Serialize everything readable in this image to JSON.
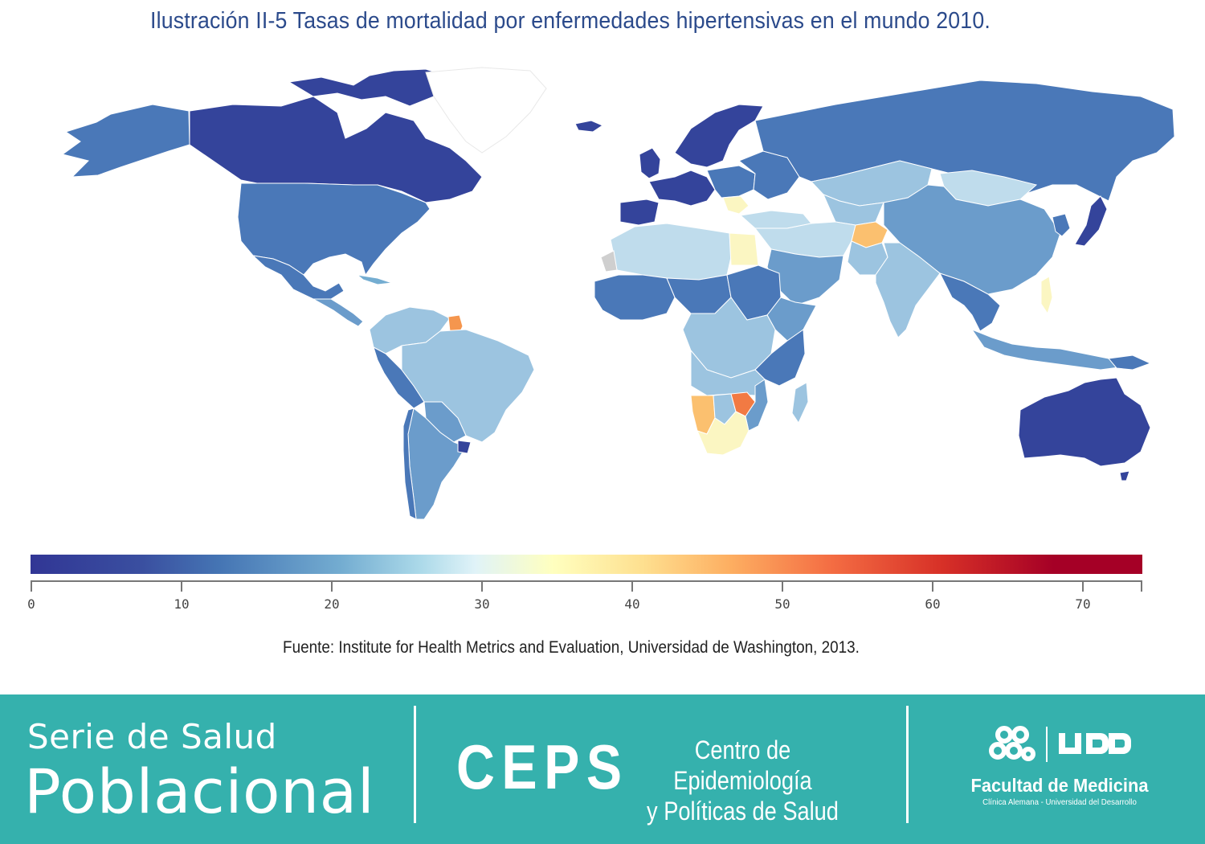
{
  "title": "Ilustración II-5 Tasas de mortalidad por enfermedades hipertensivas en el mundo 2010.",
  "source": "Fuente: Institute for Health Metrics and Evaluation, Universidad de Washington, 2013.",
  "legend": {
    "min": 0,
    "max": 74,
    "ticks": [
      "0",
      "10",
      "20",
      "30",
      "40",
      "50",
      "60",
      "70"
    ],
    "tick_values": [
      0,
      10,
      20,
      30,
      40,
      50,
      60,
      70
    ],
    "colors": [
      "#313695",
      "#4575b4",
      "#74add1",
      "#e0f3f8",
      "#ffffbf",
      "#fdae61",
      "#f46d43",
      "#a50026"
    ]
  },
  "map_colors": {
    "very_low": "#34449b",
    "low": "#4a78b8",
    "mid_low": "#6b9ccb",
    "mid": "#9cc4e0",
    "mid_light": "#bfdcec",
    "light": "#d9ecf3",
    "pale": "#fbf6c2",
    "orange_light": "#fbc06f",
    "orange": "#f5964e",
    "orange_red": "#f27a43",
    "nodata": "#cfcfcf"
  },
  "footer": {
    "serie": "Serie de Salud",
    "poblacional": "Poblacional",
    "ceps": "CEPS",
    "centro_line1": "Centro de Epidemiología",
    "centro_line2": "y Políticas de Salud",
    "udd": "UDD",
    "facultad": "Facultad de Medicina",
    "clinica": "Clínica Alemana - Universidad del Desarrollo",
    "background": "#35b1ad"
  }
}
